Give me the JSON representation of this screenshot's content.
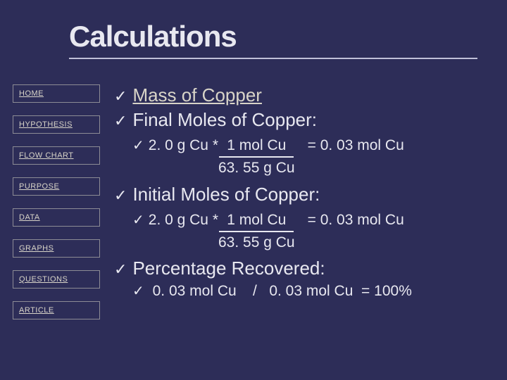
{
  "title": "Calculations",
  "nav": {
    "items": [
      {
        "label": "HOME"
      },
      {
        "label": "HYPOTHESIS"
      },
      {
        "label": "FLOW CHART"
      },
      {
        "label": "PURPOSE"
      },
      {
        "label": "DATA"
      },
      {
        "label": "GRAPHS"
      },
      {
        "label": "QUESTIONS"
      },
      {
        "label": "ARTICLE"
      }
    ]
  },
  "content": {
    "bullets": [
      {
        "text": "Mass of Copper",
        "linked": true
      },
      {
        "text": "Final Moles of Copper:"
      }
    ],
    "calc1": {
      "left": "2. 0 g Cu  * ",
      "frac_top": "1 mol Cu",
      "frac_bot": "63. 55 g Cu",
      "result": "= 0. 03 mol Cu"
    },
    "bullet3": "Initial Moles of Copper:",
    "calc2": {
      "left": "2. 0 g Cu  * ",
      "frac_top": "1 mol Cu",
      "frac_bot": "63. 55 g Cu",
      "result": "= 0. 03 mol Cu"
    },
    "bullet4": "Percentage Recovered:",
    "calc3": {
      "text": " 0. 03 mol Cu    /   0. 03 mol Cu  = 100%"
    }
  },
  "colors": {
    "background": "#2d2d58",
    "text": "#e8e8f0",
    "link": "#d8d4c8",
    "border": "#8d8c95"
  }
}
